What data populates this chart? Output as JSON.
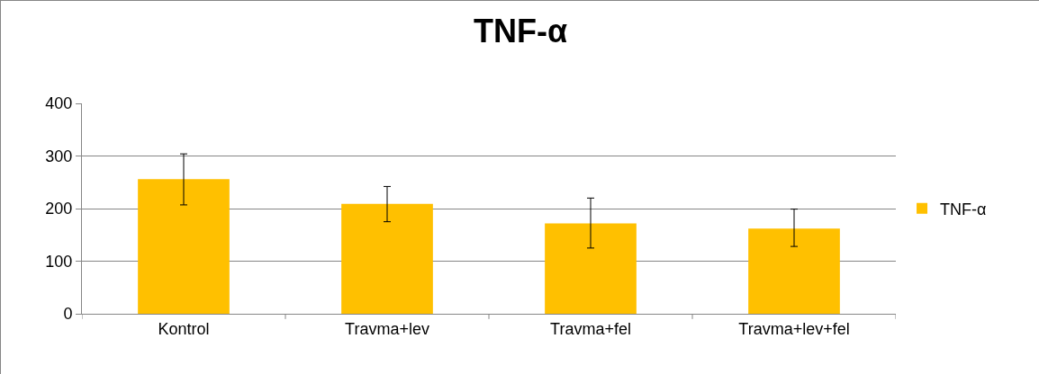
{
  "chart_data": {
    "type": "bar",
    "title": "TNF-α",
    "categories": [
      "Kontrol",
      "Travma+lev",
      "Travma+fel",
      "Travma+lev+fel"
    ],
    "series": [
      {
        "name": "TNF-α",
        "color": "#ffc000",
        "values": [
          256,
          209,
          172,
          162
        ],
        "errors": [
          [
            207,
            304
          ],
          [
            175,
            242
          ],
          [
            125,
            220
          ],
          [
            128,
            199
          ]
        ]
      }
    ],
    "ylim": [
      0,
      400
    ],
    "yticks": [
      0,
      100,
      200,
      300,
      400
    ],
    "grid": "y",
    "legend": "right"
  }
}
